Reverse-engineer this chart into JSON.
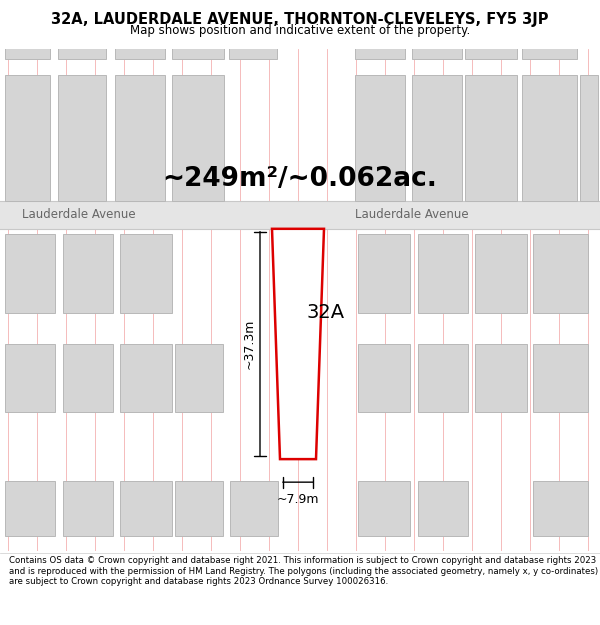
{
  "title": "32A, LAUDERDALE AVENUE, THORNTON-CLEVELEYS, FY5 3JP",
  "subtitle": "Map shows position and indicative extent of the property.",
  "area_text": "~249m²/~0.062ac.",
  "label_32a": "32A",
  "road_name": "Lauderdale Avenue",
  "dim_height": "~37.3m",
  "dim_width": "~7.9m",
  "footer": "Contains OS data © Crown copyright and database right 2021. This information is subject to Crown copyright and database rights 2023 and is reproduced with the permission of HM Land Registry. The polygons (including the associated geometry, namely x, y co-ordinates) are subject to Crown copyright and database rights 2023 Ordnance Survey 100026316.",
  "map_bg": "#f7f3f1",
  "road_fill": "#e5e5e5",
  "road_border": "#c8c8c8",
  "building_fill": "#d5d5d5",
  "building_edge": "#b8b8b8",
  "plot_fill": "#ffffff",
  "plot_edge": "#dd0000",
  "grid_line_color": "#f2aaaa",
  "plot_edge_width": 1.8,
  "title_fontsize": 10.5,
  "subtitle_fontsize": 8.5,
  "area_fontsize": 19,
  "label_fontsize": 14,
  "road_fontsize": 8.5,
  "dim_fontsize": 9,
  "footer_fontsize": 6.2
}
